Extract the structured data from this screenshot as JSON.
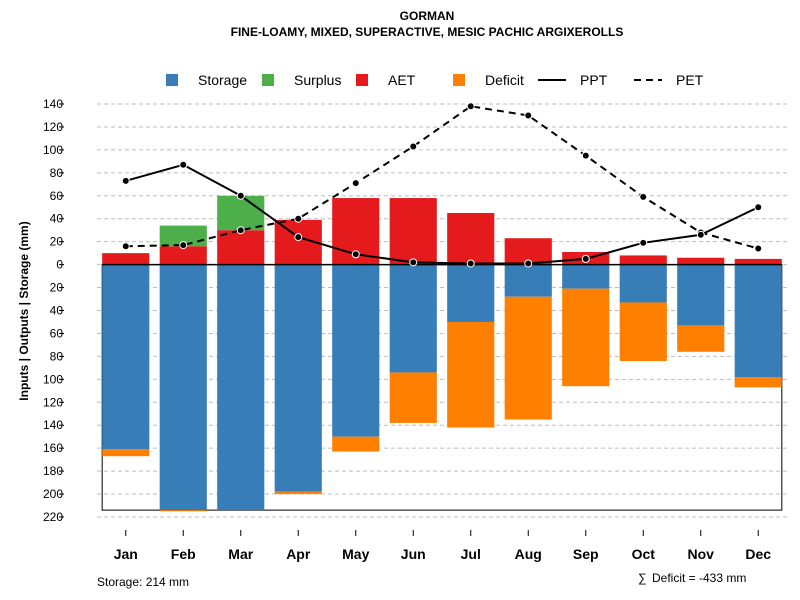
{
  "chart_data": {
    "type": "bar",
    "title": "GORMAN",
    "subtitle": "FINE-LOAMY, MIXED, SUPERACTIVE, MESIC PACHIC ARGIXEROLLS",
    "ylabel": "Inputs | Outputs | Storage    (mm)",
    "categories": [
      "Jan",
      "Feb",
      "Mar",
      "Apr",
      "May",
      "Jun",
      "Jul",
      "Aug",
      "Sep",
      "Oct",
      "Nov",
      "Dec"
    ],
    "ylim": [
      -220,
      140
    ],
    "y_ticks": [
      140,
      120,
      100,
      80,
      60,
      40,
      20,
      0,
      -20,
      -40,
      -60,
      -80,
      -100,
      -120,
      -140,
      -160,
      -180,
      -200,
      -220
    ],
    "y_tick_labels": [
      "140",
      "120",
      "100",
      "80",
      "60",
      "40",
      "20",
      "0",
      "20",
      "40",
      "60",
      "80",
      "100",
      "120",
      "140",
      "160",
      "180",
      "200",
      "220"
    ],
    "grid": true,
    "legend_position": "top",
    "colors": {
      "storage": "#377EB8",
      "surplus": "#4DAF4A",
      "aet": "#E41A1C",
      "deficit": "#FF7F00"
    },
    "legend": [
      {
        "key": "storage",
        "label": "Storage",
        "kind": "box"
      },
      {
        "key": "surplus",
        "label": "Surplus",
        "kind": "box"
      },
      {
        "key": "aet",
        "label": "AET",
        "kind": "box"
      },
      {
        "key": "deficit",
        "label": "Deficit",
        "kind": "box"
      },
      {
        "key": "ppt",
        "label": "PPT",
        "kind": "solid"
      },
      {
        "key": "pet",
        "label": "PET",
        "kind": "dashed"
      }
    ],
    "series": [
      {
        "name": "AET",
        "key": "aet",
        "values": [
          10,
          16,
          30,
          39,
          58,
          58,
          45,
          23,
          11,
          8,
          6,
          5
        ]
      },
      {
        "name": "Surplus",
        "key": "surplus",
        "values": [
          0,
          18,
          30,
          0,
          0,
          0,
          0,
          0,
          0,
          0,
          0,
          0
        ]
      },
      {
        "name": "Storage",
        "key": "storage",
        "values": [
          -161,
          -214,
          -214,
          -198,
          -150,
          -94,
          -50,
          -28,
          -21,
          -33,
          -53,
          -98
        ]
      },
      {
        "name": "Deficit",
        "key": "deficit",
        "values": [
          -6,
          -1,
          0,
          -2,
          -13,
          -44,
          -92,
          -107,
          -85,
          -51,
          -23,
          -9
        ]
      },
      {
        "name": "PPT",
        "key": "ppt",
        "values": [
          73,
          87,
          60,
          24,
          9,
          2,
          1,
          1,
          5,
          19,
          26,
          50
        ]
      },
      {
        "name": "PET",
        "key": "pet",
        "values": [
          16,
          17,
          30,
          40,
          71,
          103,
          138,
          130,
          95,
          59,
          28,
          14
        ]
      }
    ],
    "storage_capacity": 214,
    "footer_left": "Storage: 214 mm",
    "footer_right": "Deficit = -433 mm",
    "footer_symbol": "∑"
  }
}
